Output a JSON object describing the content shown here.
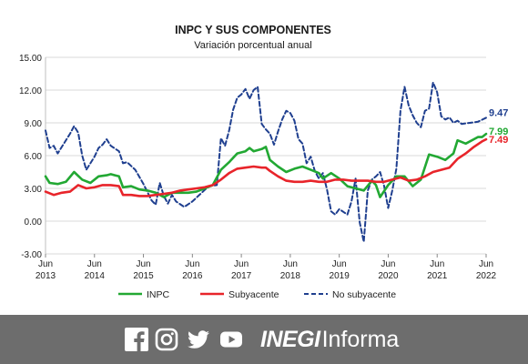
{
  "chart_data": {
    "type": "line",
    "title": "INPC Y SUS COMPONENTES",
    "subtitle": "Variación porcentual anual",
    "ylim": [
      -3.0,
      15.0
    ],
    "y_ticks": [
      "15.00",
      "12.00",
      "9.00",
      "6.00",
      "3.00",
      "0.00",
      "-3.00"
    ],
    "y_tick_values": [
      15,
      12,
      9,
      6,
      3,
      0,
      -3
    ],
    "x_range": [
      "2013-06",
      "2022-06"
    ],
    "x_ticks": [
      {
        "month": "Jun",
        "year": "2013",
        "date": "2013-06"
      },
      {
        "month": "Jun",
        "year": "2014",
        "date": "2014-06"
      },
      {
        "month": "Jun",
        "year": "2015",
        "date": "2015-06"
      },
      {
        "month": "Jun",
        "year": "2016",
        "date": "2016-06"
      },
      {
        "month": "Jun",
        "year": "2017",
        "date": "2017-06"
      },
      {
        "month": "Jun",
        "year": "2018",
        "date": "2018-06"
      },
      {
        "month": "Jun",
        "year": "2019",
        "date": "2019-06"
      },
      {
        "month": "Jun",
        "year": "2020",
        "date": "2020-06"
      },
      {
        "month": "Jun",
        "year": "2021",
        "date": "2021-06"
      },
      {
        "month": "Jun",
        "year": "2022",
        "date": "2022-06"
      }
    ],
    "grid": "horizontal",
    "legend_position": "bottom",
    "series": [
      {
        "name": "INPC",
        "color": "#22a833",
        "style": "solid",
        "end_label": "7.99",
        "points": [
          [
            "2013-06",
            4.1
          ],
          [
            "2013-07",
            3.5
          ],
          [
            "2013-09",
            3.4
          ],
          [
            "2013-11",
            3.6
          ],
          [
            "2014-01",
            4.5
          ],
          [
            "2014-03",
            3.8
          ],
          [
            "2014-05",
            3.5
          ],
          [
            "2014-07",
            4.1
          ],
          [
            "2014-09",
            4.2
          ],
          [
            "2014-10",
            4.3
          ],
          [
            "2014-11",
            4.2
          ],
          [
            "2014-12",
            4.1
          ],
          [
            "2015-01",
            3.1
          ],
          [
            "2015-03",
            3.2
          ],
          [
            "2015-05",
            2.9
          ],
          [
            "2015-07",
            2.8
          ],
          [
            "2015-09",
            2.6
          ],
          [
            "2015-11",
            2.2
          ],
          [
            "2016-01",
            2.6
          ],
          [
            "2016-03",
            2.6
          ],
          [
            "2016-05",
            2.6
          ],
          [
            "2016-07",
            2.7
          ],
          [
            "2016-09",
            3.0
          ],
          [
            "2016-11",
            3.3
          ],
          [
            "2017-01",
            4.7
          ],
          [
            "2017-03",
            5.4
          ],
          [
            "2017-05",
            6.2
          ],
          [
            "2017-07",
            6.4
          ],
          [
            "2017-08",
            6.7
          ],
          [
            "2017-09",
            6.4
          ],
          [
            "2017-11",
            6.6
          ],
          [
            "2017-12",
            6.8
          ],
          [
            "2018-01",
            5.6
          ],
          [
            "2018-03",
            5.0
          ],
          [
            "2018-05",
            4.5
          ],
          [
            "2018-07",
            4.8
          ],
          [
            "2018-09",
            5.0
          ],
          [
            "2018-11",
            4.7
          ],
          [
            "2019-01",
            4.4
          ],
          [
            "2019-02",
            3.9
          ],
          [
            "2019-04",
            4.4
          ],
          [
            "2019-06",
            3.9
          ],
          [
            "2019-08",
            3.2
          ],
          [
            "2019-10",
            3.0
          ],
          [
            "2019-12",
            2.8
          ],
          [
            "2020-02",
            3.7
          ],
          [
            "2020-03",
            3.3
          ],
          [
            "2020-04",
            2.2
          ],
          [
            "2020-06",
            3.3
          ],
          [
            "2020-08",
            4.1
          ],
          [
            "2020-10",
            4.1
          ],
          [
            "2020-12",
            3.2
          ],
          [
            "2021-02",
            3.8
          ],
          [
            "2021-04",
            6.1
          ],
          [
            "2021-06",
            5.9
          ],
          [
            "2021-08",
            5.6
          ],
          [
            "2021-10",
            6.2
          ],
          [
            "2021-11",
            7.4
          ],
          [
            "2022-01",
            7.1
          ],
          [
            "2022-03",
            7.5
          ],
          [
            "2022-04",
            7.7
          ],
          [
            "2022-05",
            7.7
          ],
          [
            "2022-06",
            7.99
          ]
        ]
      },
      {
        "name": "Subyacente",
        "color": "#e8242a",
        "style": "solid",
        "end_label": "7.49",
        "points": [
          [
            "2013-06",
            2.7
          ],
          [
            "2013-08",
            2.4
          ],
          [
            "2013-10",
            2.6
          ],
          [
            "2013-12",
            2.7
          ],
          [
            "2014-02",
            3.3
          ],
          [
            "2014-04",
            3.0
          ],
          [
            "2014-06",
            3.1
          ],
          [
            "2014-08",
            3.3
          ],
          [
            "2014-10",
            3.3
          ],
          [
            "2014-12",
            3.2
          ],
          [
            "2015-01",
            2.4
          ],
          [
            "2015-03",
            2.4
          ],
          [
            "2015-05",
            2.3
          ],
          [
            "2015-07",
            2.3
          ],
          [
            "2015-09",
            2.4
          ],
          [
            "2015-11",
            2.5
          ],
          [
            "2016-01",
            2.6
          ],
          [
            "2016-03",
            2.8
          ],
          [
            "2016-05",
            2.9
          ],
          [
            "2016-07",
            3.0
          ],
          [
            "2016-09",
            3.1
          ],
          [
            "2016-11",
            3.3
          ],
          [
            "2017-01",
            3.8
          ],
          [
            "2017-03",
            4.4
          ],
          [
            "2017-05",
            4.8
          ],
          [
            "2017-07",
            4.9
          ],
          [
            "2017-09",
            5.0
          ],
          [
            "2017-11",
            4.9
          ],
          [
            "2017-12",
            4.9
          ],
          [
            "2018-01",
            4.6
          ],
          [
            "2018-03",
            4.1
          ],
          [
            "2018-05",
            3.7
          ],
          [
            "2018-07",
            3.6
          ],
          [
            "2018-09",
            3.6
          ],
          [
            "2018-11",
            3.7
          ],
          [
            "2019-01",
            3.6
          ],
          [
            "2019-03",
            3.6
          ],
          [
            "2019-05",
            3.8
          ],
          [
            "2019-07",
            3.8
          ],
          [
            "2019-09",
            3.7
          ],
          [
            "2019-11",
            3.7
          ],
          [
            "2020-01",
            3.7
          ],
          [
            "2020-03",
            3.6
          ],
          [
            "2020-05",
            3.6
          ],
          [
            "2020-07",
            3.8
          ],
          [
            "2020-09",
            4.0
          ],
          [
            "2020-11",
            3.7
          ],
          [
            "2021-01",
            3.8
          ],
          [
            "2021-03",
            4.1
          ],
          [
            "2021-05",
            4.5
          ],
          [
            "2021-07",
            4.7
          ],
          [
            "2021-09",
            4.9
          ],
          [
            "2021-11",
            5.7
          ],
          [
            "2022-01",
            6.2
          ],
          [
            "2022-03",
            6.8
          ],
          [
            "2022-05",
            7.3
          ],
          [
            "2022-06",
            7.49
          ]
        ]
      },
      {
        "name": "No subyacente",
        "color": "#1f3f8f",
        "style": "dashed",
        "end_label": "9.47",
        "points": [
          [
            "2013-06",
            8.3
          ],
          [
            "2013-07",
            6.7
          ],
          [
            "2013-08",
            6.9
          ],
          [
            "2013-09",
            6.2
          ],
          [
            "2013-10",
            6.8
          ],
          [
            "2013-12",
            8.0
          ],
          [
            "2014-01",
            8.7
          ],
          [
            "2014-02",
            8.1
          ],
          [
            "2014-03",
            6.0
          ],
          [
            "2014-04",
            4.7
          ],
          [
            "2014-06",
            5.9
          ],
          [
            "2014-07",
            6.7
          ],
          [
            "2014-08",
            7.0
          ],
          [
            "2014-09",
            7.5
          ],
          [
            "2014-10",
            6.9
          ],
          [
            "2014-12",
            6.4
          ],
          [
            "2015-01",
            5.3
          ],
          [
            "2015-02",
            5.4
          ],
          [
            "2015-04",
            4.7
          ],
          [
            "2015-06",
            3.4
          ],
          [
            "2015-08",
            1.9
          ],
          [
            "2015-09",
            1.5
          ],
          [
            "2015-10",
            3.5
          ],
          [
            "2015-11",
            2.3
          ],
          [
            "2015-12",
            1.6
          ],
          [
            "2016-01",
            2.4
          ],
          [
            "2016-02",
            1.8
          ],
          [
            "2016-04",
            1.3
          ],
          [
            "2016-06",
            1.8
          ],
          [
            "2016-08",
            2.5
          ],
          [
            "2016-10",
            3.2
          ],
          [
            "2016-12",
            3.3
          ],
          [
            "2017-01",
            7.6
          ],
          [
            "2017-02",
            6.9
          ],
          [
            "2017-03",
            8.3
          ],
          [
            "2017-04",
            10.2
          ],
          [
            "2017-05",
            11.3
          ],
          [
            "2017-06",
            11.6
          ],
          [
            "2017-07",
            12.1
          ],
          [
            "2017-08",
            11.2
          ],
          [
            "2017-09",
            12.0
          ],
          [
            "2017-10",
            12.3
          ],
          [
            "2017-11",
            8.9
          ],
          [
            "2017-12",
            8.4
          ],
          [
            "2018-01",
            8.0
          ],
          [
            "2018-02",
            7.0
          ],
          [
            "2018-03",
            8.2
          ],
          [
            "2018-04",
            9.3
          ],
          [
            "2018-05",
            10.1
          ],
          [
            "2018-06",
            9.9
          ],
          [
            "2018-07",
            9.2
          ],
          [
            "2018-08",
            7.5
          ],
          [
            "2018-09",
            7.1
          ],
          [
            "2018-10",
            5.3
          ],
          [
            "2018-11",
            5.9
          ],
          [
            "2018-12",
            4.6
          ],
          [
            "2019-01",
            3.9
          ],
          [
            "2019-02",
            4.4
          ],
          [
            "2019-03",
            2.9
          ],
          [
            "2019-04",
            0.9
          ],
          [
            "2019-05",
            0.6
          ],
          [
            "2019-06",
            1.1
          ],
          [
            "2019-08",
            0.6
          ],
          [
            "2019-09",
            1.8
          ],
          [
            "2019-10",
            3.9
          ],
          [
            "2019-11",
            -0.1
          ],
          [
            "2019-12",
            -1.9
          ],
          [
            "2020-01",
            2.8
          ],
          [
            "2020-02",
            3.8
          ],
          [
            "2020-03",
            4.1
          ],
          [
            "2020-04",
            4.5
          ],
          [
            "2020-05",
            3.2
          ],
          [
            "2020-06",
            1.2
          ],
          [
            "2020-07",
            2.8
          ],
          [
            "2020-08",
            4.8
          ],
          [
            "2020-09",
            10.1
          ],
          [
            "2020-10",
            12.3
          ],
          [
            "2020-11",
            10.6
          ],
          [
            "2020-12",
            9.7
          ],
          [
            "2021-01",
            9.0
          ],
          [
            "2021-02",
            8.6
          ],
          [
            "2021-03",
            10.1
          ],
          [
            "2021-04",
            10.3
          ],
          [
            "2021-05",
            12.7
          ],
          [
            "2021-06",
            11.8
          ],
          [
            "2021-07",
            9.6
          ],
          [
            "2021-08",
            9.3
          ],
          [
            "2021-09",
            9.5
          ],
          [
            "2021-10",
            9.0
          ],
          [
            "2021-11",
            9.2
          ],
          [
            "2021-12",
            8.9
          ],
          [
            "2022-02",
            9.0
          ],
          [
            "2022-04",
            9.1
          ],
          [
            "2022-06",
            9.47
          ]
        ]
      }
    ]
  },
  "footer": {
    "background": "#6d6d6d",
    "icons": [
      "facebook-icon",
      "instagram-icon",
      "twitter-icon",
      "youtube-icon"
    ],
    "brand_strong": "INEGI",
    "brand_light": "Informa"
  }
}
